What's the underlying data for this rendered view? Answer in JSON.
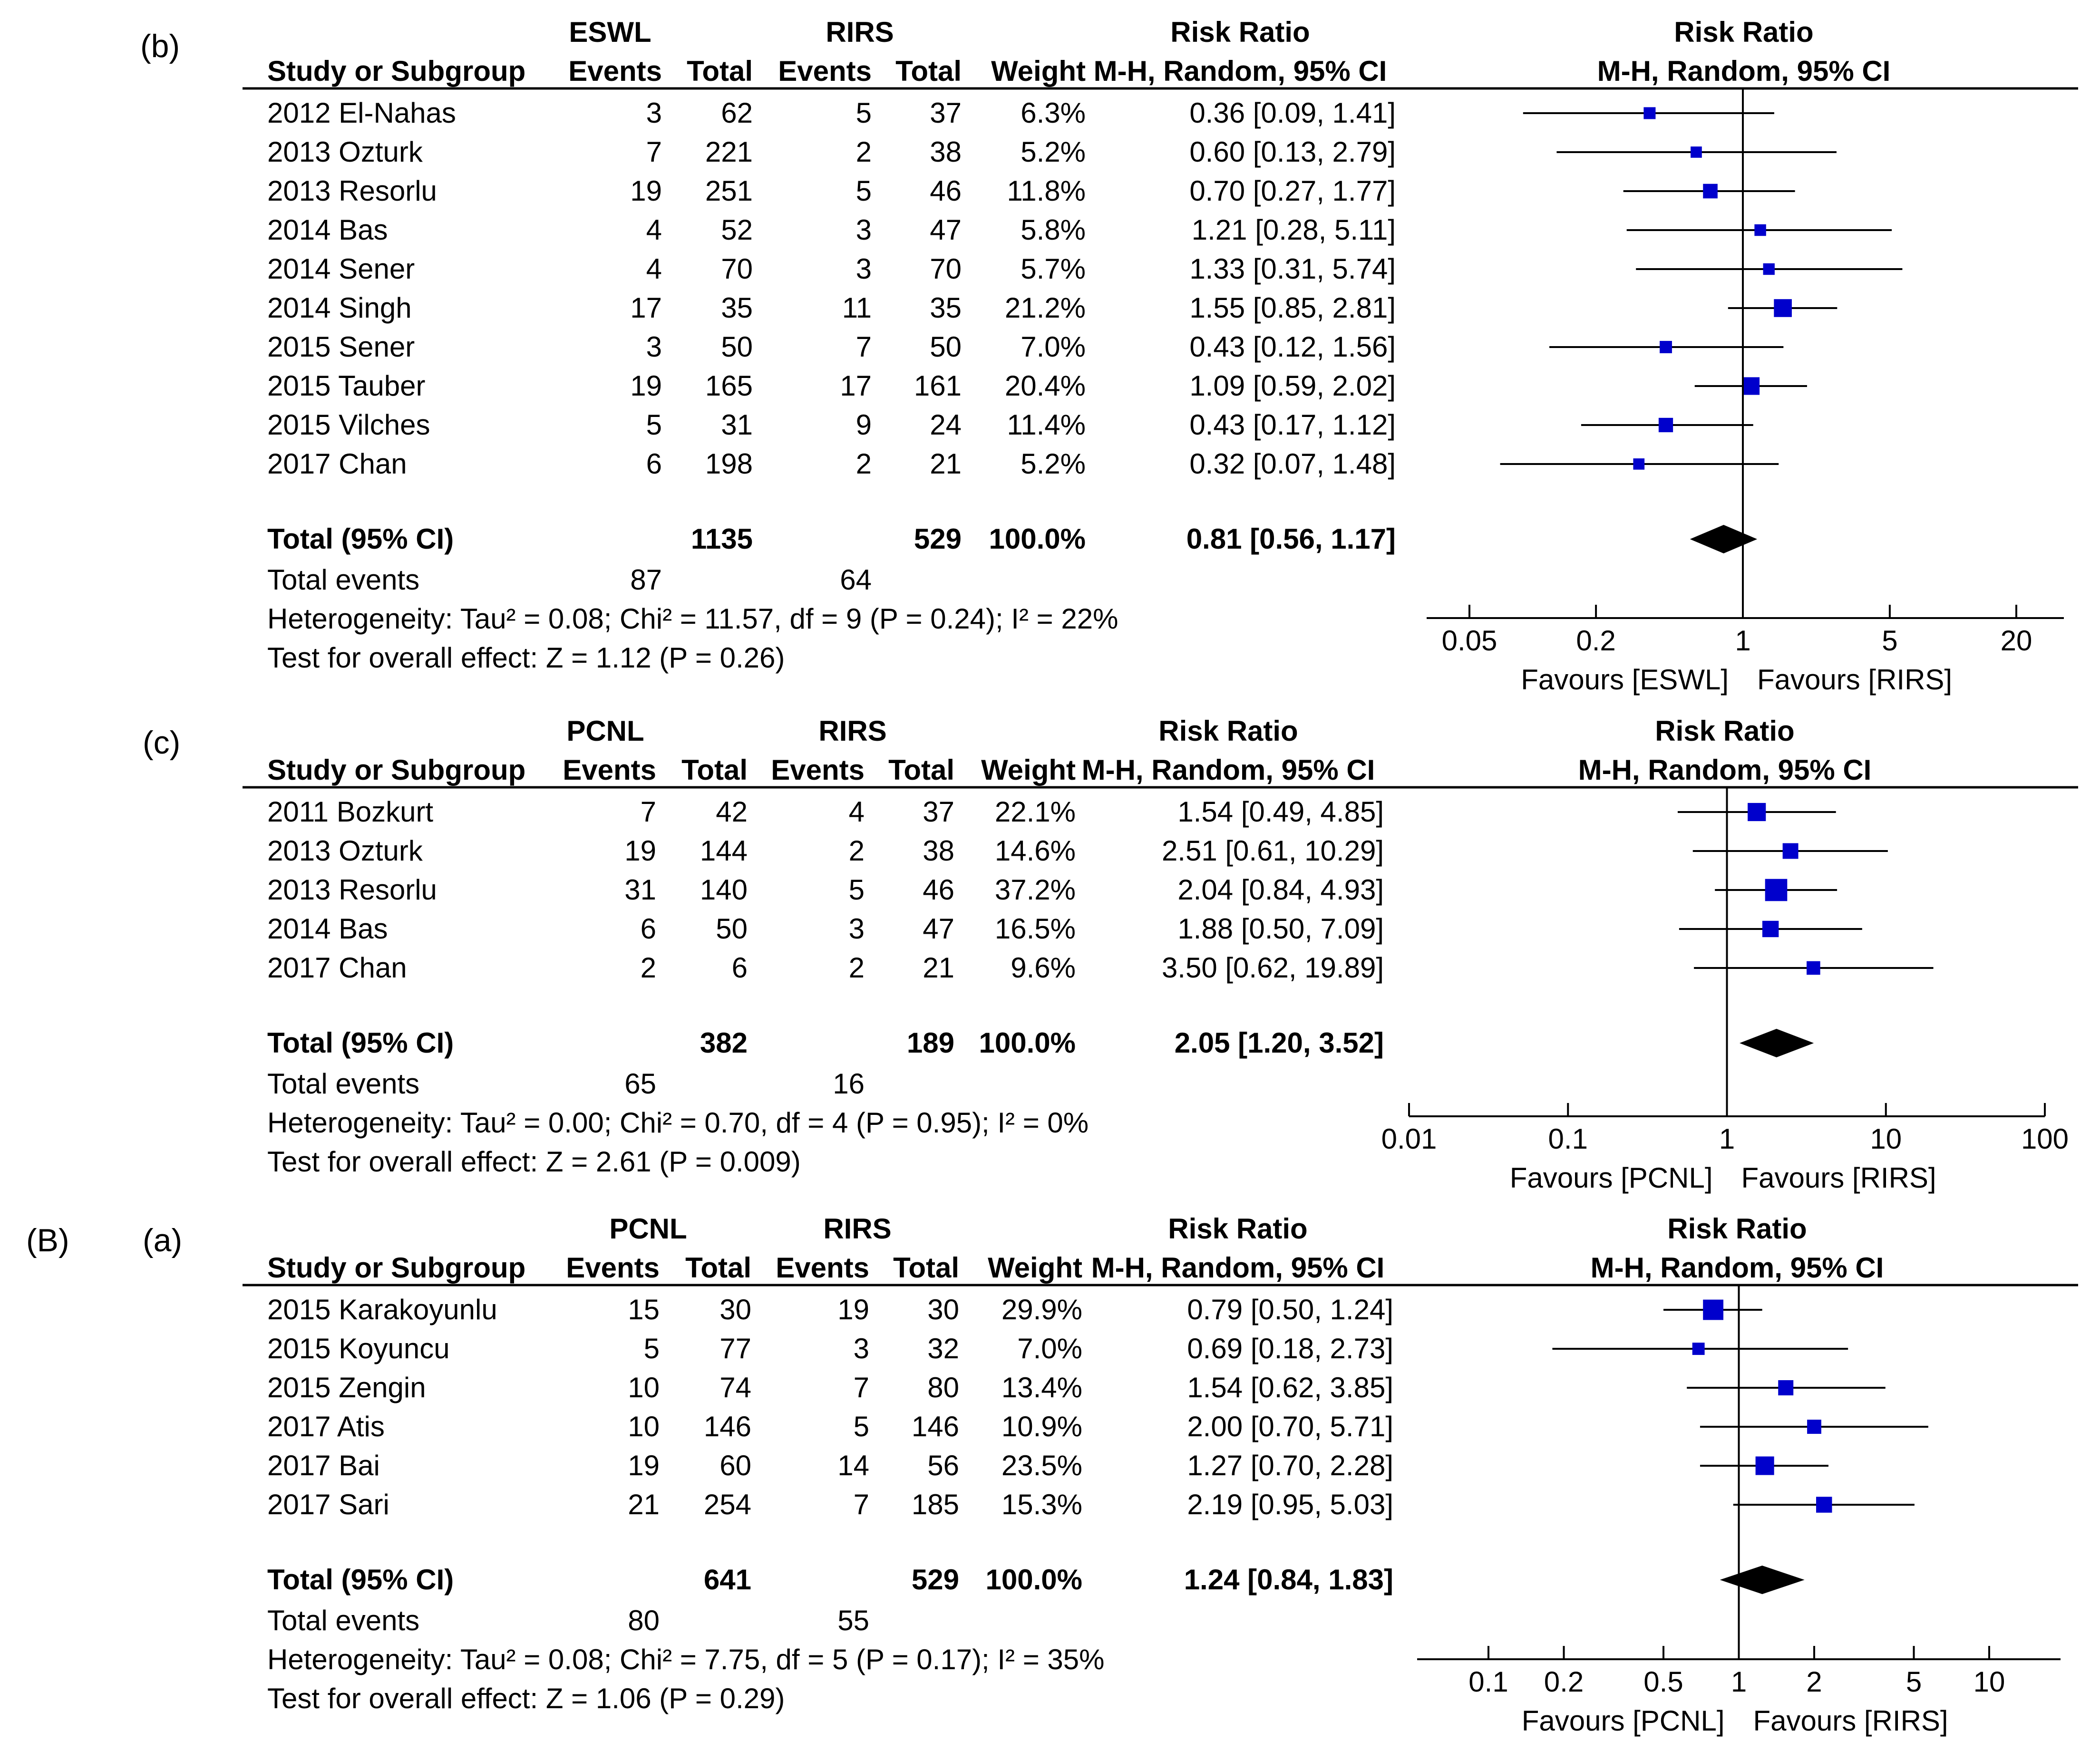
{
  "colors": {
    "marker": "#0000cc",
    "ink": "#000000"
  },
  "panel_labels": {
    "b": "(b)",
    "c": "(c)",
    "B": "(B)",
    "a": "(a)"
  },
  "chart_data": [
    {
      "type": "forest",
      "panel": "(b)",
      "group1": "ESWL",
      "group2": "RIRS",
      "headers": {
        "study": "Study or Subgroup",
        "events": "Events",
        "total": "Total",
        "weight": "Weight",
        "rr_title": "Risk Ratio",
        "rr_method": "M-H, Random, 95% CI"
      },
      "x_scale": "log",
      "xlim": [
        0.02,
        40
      ],
      "ticks": [
        0.05,
        0.2,
        1,
        5,
        20
      ],
      "tick_labels": [
        "0.05",
        "0.2",
        "1",
        "5",
        "20"
      ],
      "favours_left": "Favours [ESWL]",
      "favours_right": "Favours [RIRS]",
      "studies": [
        {
          "name": "2012 El-Nahas",
          "e1": "3",
          "t1": "62",
          "e2": "5",
          "t2": "37",
          "weight": "6.3%",
          "ci_text": "0.36 [0.09, 1.41]",
          "rr": 0.36,
          "lo": 0.09,
          "hi": 1.41,
          "w": 6.3
        },
        {
          "name": "2013 Ozturk",
          "e1": "7",
          "t1": "221",
          "e2": "2",
          "t2": "38",
          "weight": "5.2%",
          "ci_text": "0.60 [0.13, 2.79]",
          "rr": 0.6,
          "lo": 0.13,
          "hi": 2.79,
          "w": 5.2
        },
        {
          "name": "2013 Resorlu",
          "e1": "19",
          "t1": "251",
          "e2": "5",
          "t2": "46",
          "weight": "11.8%",
          "ci_text": "0.70 [0.27, 1.77]",
          "rr": 0.7,
          "lo": 0.27,
          "hi": 1.77,
          "w": 11.8
        },
        {
          "name": "2014 Bas",
          "e1": "4",
          "t1": "52",
          "e2": "3",
          "t2": "47",
          "weight": "5.8%",
          "ci_text": "1.21 [0.28, 5.11]",
          "rr": 1.21,
          "lo": 0.28,
          "hi": 5.11,
          "w": 5.8
        },
        {
          "name": "2014 Sener",
          "e1": "4",
          "t1": "70",
          "e2": "3",
          "t2": "70",
          "weight": "5.7%",
          "ci_text": "1.33 [0.31, 5.74]",
          "rr": 1.33,
          "lo": 0.31,
          "hi": 5.74,
          "w": 5.7
        },
        {
          "name": "2014 Singh",
          "e1": "17",
          "t1": "35",
          "e2": "11",
          "t2": "35",
          "weight": "21.2%",
          "ci_text": "1.55 [0.85, 2.81]",
          "rr": 1.55,
          "lo": 0.85,
          "hi": 2.81,
          "w": 21.2
        },
        {
          "name": "2015 Sener",
          "e1": "3",
          "t1": "50",
          "e2": "7",
          "t2": "50",
          "weight": "7.0%",
          "ci_text": "0.43 [0.12, 1.56]",
          "rr": 0.43,
          "lo": 0.12,
          "hi": 1.56,
          "w": 7.0
        },
        {
          "name": "2015 Tauber",
          "e1": "19",
          "t1": "165",
          "e2": "17",
          "t2": "161",
          "weight": "20.4%",
          "ci_text": "1.09 [0.59, 2.02]",
          "rr": 1.09,
          "lo": 0.59,
          "hi": 2.02,
          "w": 20.4
        },
        {
          "name": "2015 Vilches",
          "e1": "5",
          "t1": "31",
          "e2": "9",
          "t2": "24",
          "weight": "11.4%",
          "ci_text": "0.43 [0.17, 1.12]",
          "rr": 0.43,
          "lo": 0.17,
          "hi": 1.12,
          "w": 11.4
        },
        {
          "name": "2017 Chan",
          "e1": "6",
          "t1": "198",
          "e2": "2",
          "t2": "21",
          "weight": "5.2%",
          "ci_text": "0.32 [0.07, 1.48]",
          "rr": 0.32,
          "lo": 0.07,
          "hi": 1.48,
          "w": 5.2
        }
      ],
      "total": {
        "label": "Total (95% CI)",
        "t1": "1135",
        "t2": "529",
        "weight": "100.0%",
        "ci_text": "0.81 [0.56, 1.17]",
        "rr": 0.81,
        "lo": 0.56,
        "hi": 1.17
      },
      "total_events": {
        "label": "Total events",
        "e1": "87",
        "e2": "64"
      },
      "heterogeneity": "Heterogeneity: Tau² = 0.08; Chi² = 11.57, df = 9 (P = 0.24); I² = 22%",
      "overall_effect": "Test for overall effect: Z = 1.12 (P = 0.26)"
    },
    {
      "type": "forest",
      "panel": "(c)",
      "group1": "PCNL",
      "group2": "RIRS",
      "headers": {
        "study": "Study or Subgroup",
        "events": "Events",
        "total": "Total",
        "weight": "Weight",
        "rr_title": "Risk Ratio",
        "rr_method": "M-H, Random, 95% CI"
      },
      "x_scale": "log",
      "xlim": [
        0.01,
        100
      ],
      "ticks": [
        0.01,
        0.1,
        1,
        10,
        100
      ],
      "tick_labels": [
        "0.01",
        "0.1",
        "1",
        "10",
        "100"
      ],
      "favours_left": "Favours [PCNL]",
      "favours_right": "Favours [RIRS]",
      "studies": [
        {
          "name": "2011 Bozkurt",
          "e1": "7",
          "t1": "42",
          "e2": "4",
          "t2": "37",
          "weight": "22.1%",
          "ci_text": "1.54 [0.49, 4.85]",
          "rr": 1.54,
          "lo": 0.49,
          "hi": 4.85,
          "w": 22.1
        },
        {
          "name": "2013 Ozturk",
          "e1": "19",
          "t1": "144",
          "e2": "2",
          "t2": "38",
          "weight": "14.6%",
          "ci_text": "2.51 [0.61, 10.29]",
          "rr": 2.51,
          "lo": 0.61,
          "hi": 10.29,
          "w": 14.6
        },
        {
          "name": "2013 Resorlu",
          "e1": "31",
          "t1": "140",
          "e2": "5",
          "t2": "46",
          "weight": "37.2%",
          "ci_text": "2.04 [0.84, 4.93]",
          "rr": 2.04,
          "lo": 0.84,
          "hi": 4.93,
          "w": 37.2
        },
        {
          "name": "2014 Bas",
          "e1": "6",
          "t1": "50",
          "e2": "3",
          "t2": "47",
          "weight": "16.5%",
          "ci_text": "1.88 [0.50, 7.09]",
          "rr": 1.88,
          "lo": 0.5,
          "hi": 7.09,
          "w": 16.5
        },
        {
          "name": "2017 Chan",
          "e1": "2",
          "t1": "6",
          "e2": "2",
          "t2": "21",
          "weight": "9.6%",
          "ci_text": "3.50 [0.62, 19.89]",
          "rr": 3.5,
          "lo": 0.62,
          "hi": 19.89,
          "w": 9.6
        }
      ],
      "total": {
        "label": "Total (95% CI)",
        "t1": "382",
        "t2": "189",
        "weight": "100.0%",
        "ci_text": "2.05 [1.20, 3.52]",
        "rr": 2.05,
        "lo": 1.2,
        "hi": 3.52
      },
      "total_events": {
        "label": "Total events",
        "e1": "65",
        "e2": "16"
      },
      "heterogeneity": "Heterogeneity: Tau² = 0.00; Chi² = 0.70, df = 4 (P = 0.95); I² = 0%",
      "overall_effect": "Test for overall effect: Z = 2.61 (P = 0.009)"
    },
    {
      "type": "forest",
      "panel": "(a)",
      "group1": "PCNL",
      "group2": "RIRS",
      "headers": {
        "study": "Study or Subgroup",
        "events": "Events",
        "total": "Total",
        "weight": "Weight",
        "rr_title": "Risk Ratio",
        "rr_method": "M-H, Random, 95% CI"
      },
      "x_scale": "log",
      "xlim": [
        0.05,
        20
      ],
      "ticks": [
        0.1,
        0.2,
        0.5,
        1,
        2,
        5,
        10
      ],
      "tick_labels": [
        "0.1",
        "0.2",
        "0.5",
        "1",
        "2",
        "5",
        "10"
      ],
      "favours_left": "Favours [PCNL]",
      "favours_right": "Favours [RIRS]",
      "studies": [
        {
          "name": "2015 Karakoyunlu",
          "e1": "15",
          "t1": "30",
          "e2": "19",
          "t2": "30",
          "weight": "29.9%",
          "ci_text": "0.79 [0.50, 1.24]",
          "rr": 0.79,
          "lo": 0.5,
          "hi": 1.24,
          "w": 29.9
        },
        {
          "name": "2015 Koyuncu",
          "e1": "5",
          "t1": "77",
          "e2": "3",
          "t2": "32",
          "weight": "7.0%",
          "ci_text": "0.69 [0.18, 2.73]",
          "rr": 0.69,
          "lo": 0.18,
          "hi": 2.73,
          "w": 7.0
        },
        {
          "name": "2015 Zengin",
          "e1": "10",
          "t1": "74",
          "e2": "7",
          "t2": "80",
          "weight": "13.4%",
          "ci_text": "1.54 [0.62, 3.85]",
          "rr": 1.54,
          "lo": 0.62,
          "hi": 3.85,
          "w": 13.4
        },
        {
          "name": "2017 Atis",
          "e1": "10",
          "t1": "146",
          "e2": "5",
          "t2": "146",
          "weight": "10.9%",
          "ci_text": "2.00 [0.70, 5.71]",
          "rr": 2.0,
          "lo": 0.7,
          "hi": 5.71,
          "w": 10.9
        },
        {
          "name": "2017 Bai",
          "e1": "19",
          "t1": "60",
          "e2": "14",
          "t2": "56",
          "weight": "23.5%",
          "ci_text": "1.27 [0.70, 2.28]",
          "rr": 1.27,
          "lo": 0.7,
          "hi": 2.28,
          "w": 23.5
        },
        {
          "name": "2017 Sari",
          "e1": "21",
          "t1": "254",
          "e2": "7",
          "t2": "185",
          "weight": "15.3%",
          "ci_text": "2.19 [0.95, 5.03]",
          "rr": 2.19,
          "lo": 0.95,
          "hi": 5.03,
          "w": 15.3
        }
      ],
      "total": {
        "label": "Total (95% CI)",
        "t1": "641",
        "t2": "529",
        "weight": "100.0%",
        "ci_text": "1.24 [0.84, 1.83]",
        "rr": 1.24,
        "lo": 0.84,
        "hi": 1.83
      },
      "total_events": {
        "label": "Total events",
        "e1": "80",
        "e2": "55"
      },
      "heterogeneity": "Heterogeneity: Tau² = 0.08; Chi² = 7.75, df = 5 (P = 0.17); I² = 35%",
      "overall_effect": "Test for overall effect: Z = 1.06 (P = 0.29)"
    }
  ]
}
